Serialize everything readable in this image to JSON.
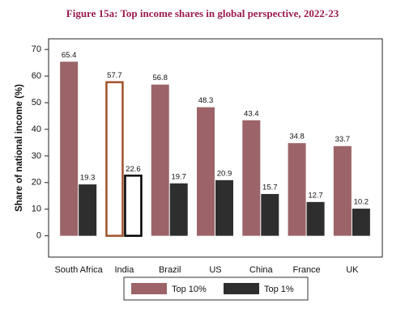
{
  "chart_data": {
    "type": "bar",
    "title": "Figure 15a: Top income shares in global perspective, 2022-23",
    "y_label": "Share of national income (%)",
    "categories": [
      "South Africa",
      "India",
      "Brazil",
      "US",
      "China",
      "France",
      "UK"
    ],
    "series": [
      {
        "name": "Top 10%",
        "color": "#9c6468",
        "values": [
          65.4,
          57.7,
          56.8,
          48.3,
          43.4,
          34.8,
          33.7
        ]
      },
      {
        "name": "Top 1%",
        "color": "#2e2e2e",
        "values": [
          19.3,
          22.6,
          19.7,
          20.9,
          15.7,
          12.7,
          10.2
        ]
      }
    ],
    "highlight": "India",
    "ylim": [
      -8,
      74
    ],
    "yticks": [
      0,
      10,
      20,
      30,
      40,
      50,
      60,
      70
    ],
    "legend": "bottom"
  }
}
